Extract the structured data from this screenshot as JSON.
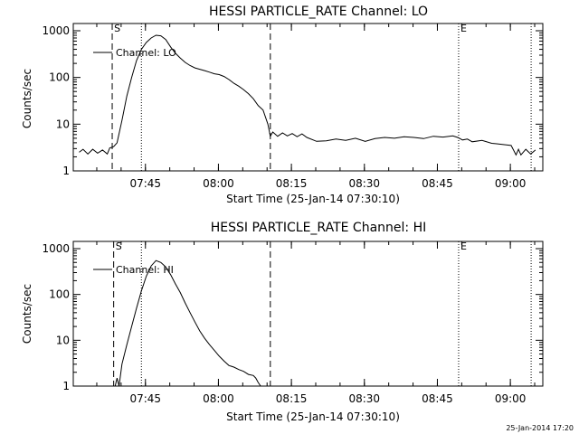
{
  "footer_stamp": "25-Jan-2014 17:20",
  "chart_data": [
    {
      "type": "line",
      "title": "HESSI PARTICLE_RATE Channel: LO",
      "xlabel": "Start Time (25-Jan-14 07:30:10)",
      "ylabel": "Counts/sec",
      "y_scale": "log",
      "ylim": [
        1,
        1000
      ],
      "xlim_minutes": [
        0,
        96.5
      ],
      "x_ticks": [
        {
          "t": 14.83,
          "label": "07:45"
        },
        {
          "t": 29.83,
          "label": "08:00"
        },
        {
          "t": 44.83,
          "label": "08:15"
        },
        {
          "t": 59.83,
          "label": "08:30"
        },
        {
          "t": 74.83,
          "label": "08:45"
        },
        {
          "t": 89.83,
          "label": "09:00"
        }
      ],
      "y_ticks": [
        {
          "v": 1,
          "label": "1"
        },
        {
          "v": 10,
          "label": "10"
        },
        {
          "v": 100,
          "label": "100"
        },
        {
          "v": 1000,
          "label": "1000"
        }
      ],
      "legend": {
        "entries": [
          "Channel: LO"
        ],
        "position": "top-left"
      },
      "markers": {
        "dashed": [
          8.0,
          40.5
        ],
        "dotted": [
          14.0,
          79.2,
          94.1
        ],
        "labels": [
          {
            "t": 8.2,
            "text": "S"
          },
          {
            "t": 79.4,
            "text": "E"
          }
        ]
      },
      "series": [
        {
          "x": [
            1.2,
            2,
            3,
            4,
            5,
            6,
            7,
            7.5,
            8.3,
            9,
            10,
            11,
            12,
            13,
            14,
            15,
            16,
            17,
            18,
            19,
            20,
            21,
            22,
            23,
            24,
            25,
            26,
            27,
            28,
            29,
            30,
            31,
            32,
            33,
            34,
            35,
            36,
            37,
            38,
            39,
            40,
            40.5,
            41,
            42,
            43,
            44,
            45,
            46,
            47,
            48,
            50,
            52,
            54,
            56,
            58,
            60,
            62,
            64,
            66,
            68,
            70,
            72,
            74,
            76,
            78,
            79,
            80,
            81,
            82,
            84,
            86,
            87,
            88,
            89,
            90,
            91,
            91.5,
            92,
            93,
            94,
            95
          ],
          "y": [
            2.5,
            2.9,
            2.3,
            2.9,
            2.4,
            2.8,
            2.3,
            3.1,
            3.3,
            4,
            12,
            40,
            100,
            230,
            400,
            560,
            700,
            800,
            780,
            650,
            450,
            330,
            260,
            210,
            180,
            160,
            150,
            140,
            130,
            120,
            115,
            105,
            90,
            75,
            65,
            55,
            45,
            35,
            25,
            20,
            10,
            5.5,
            6.8,
            5.5,
            6.5,
            5.6,
            6.3,
            5.4,
            6.2,
            5.2,
            4.3,
            4.4,
            4.8,
            4.5,
            5.0,
            4.3,
            4.9,
            5.2,
            5.0,
            5.4,
            5.2,
            4.9,
            5.5,
            5.3,
            5.6,
            5.2,
            4.6,
            4.8,
            4.2,
            4.5,
            3.9,
            3.8,
            3.7,
            3.6,
            3.5,
            2.2,
            2.9,
            2.2,
            2.9,
            2.3,
            2.8
          ]
        }
      ]
    },
    {
      "type": "line",
      "title": "HESSI PARTICLE_RATE Channel: HI",
      "xlabel": "Start Time (25-Jan-14 07:30:10)",
      "ylabel": "Counts/sec",
      "y_scale": "log",
      "ylim": [
        1,
        1000
      ],
      "xlim_minutes": [
        0,
        96.5
      ],
      "x_ticks": [
        {
          "t": 14.83,
          "label": "07:45"
        },
        {
          "t": 29.83,
          "label": "08:00"
        },
        {
          "t": 44.83,
          "label": "08:15"
        },
        {
          "t": 59.83,
          "label": "08:30"
        },
        {
          "t": 74.83,
          "label": "08:45"
        },
        {
          "t": 89.83,
          "label": "09:00"
        }
      ],
      "y_ticks": [
        {
          "v": 1,
          "label": "1"
        },
        {
          "v": 10,
          "label": "10"
        },
        {
          "v": 100,
          "label": "100"
        },
        {
          "v": 1000,
          "label": "1000"
        }
      ],
      "legend": {
        "entries": [
          "Channel: HI"
        ],
        "position": "top-left"
      },
      "markers": {
        "dashed": [
          8.3,
          40.5
        ],
        "dotted": [
          14.0,
          79.2,
          94.1
        ],
        "labels": [
          {
            "t": 8.5,
            "text": "S"
          },
          {
            "t": 79.4,
            "text": "E"
          }
        ]
      },
      "series": [
        {
          "x": [
            8.6,
            9,
            9.4,
            10,
            11,
            12,
            13,
            14,
            15,
            16,
            17,
            18,
            19,
            20,
            21,
            22,
            23,
            24,
            25,
            26,
            27,
            28,
            29,
            30,
            31,
            32,
            33,
            34,
            35,
            36,
            37,
            37.5,
            38,
            38.5
          ],
          "y": [
            1,
            1.5,
            1,
            3,
            8,
            20,
            50,
            120,
            250,
            420,
            550,
            500,
            400,
            270,
            170,
            110,
            65,
            40,
            25,
            16,
            11,
            8,
            6,
            4.5,
            3.5,
            2.8,
            2.6,
            2.3,
            2.1,
            1.8,
            1.7,
            1.5,
            1.2,
            1.0
          ]
        }
      ]
    }
  ]
}
